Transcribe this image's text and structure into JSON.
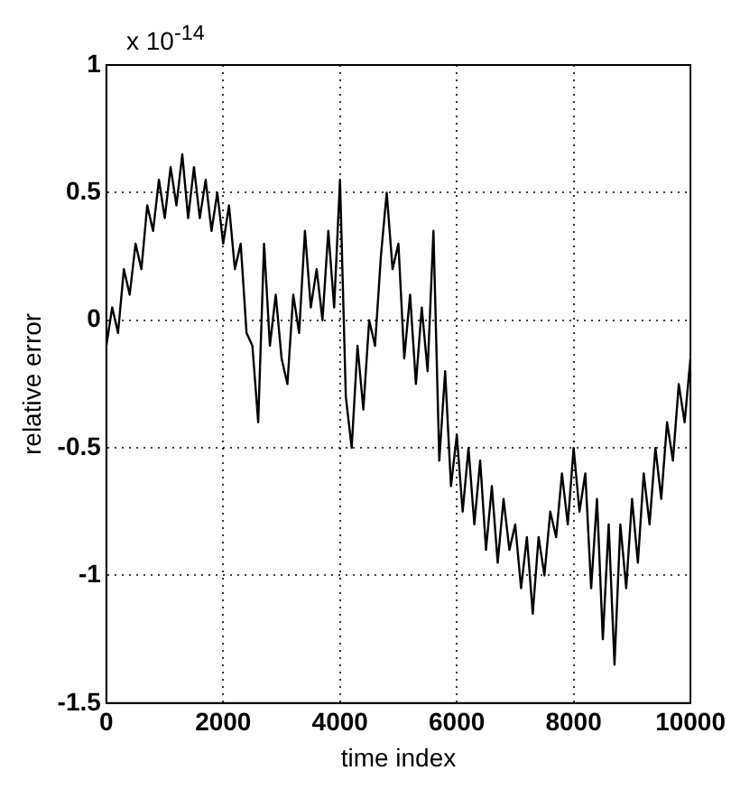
{
  "chart_data": {
    "type": "line",
    "xlabel": "time index",
    "ylabel": "relative error",
    "annotations": [
      "x 10$^{-14}$"
    ],
    "x": [
      0,
      100,
      200,
      300,
      400,
      500,
      600,
      700,
      800,
      900,
      1000,
      1100,
      1200,
      1300,
      1400,
      1500,
      1600,
      1700,
      1800,
      1900,
      2000,
      2100,
      2200,
      2300,
      2400,
      2500,
      2600,
      2700,
      2800,
      2900,
      3000,
      3100,
      3200,
      3300,
      3400,
      3500,
      3600,
      3700,
      3800,
      3900,
      4000,
      4100,
      4200,
      4300,
      4400,
      4500,
      4600,
      4700,
      4800,
      4900,
      5000,
      5100,
      5200,
      5300,
      5400,
      5500,
      5600,
      5700,
      5800,
      5900,
      6000,
      6100,
      6200,
      6300,
      6400,
      6500,
      6600,
      6700,
      6800,
      6900,
      7000,
      7100,
      7200,
      7300,
      7400,
      7500,
      7600,
      7700,
      7800,
      7900,
      8000,
      8100,
      8200,
      8300,
      8400,
      8500,
      8600,
      8700,
      8800,
      8900,
      9000,
      9100,
      9200,
      9300,
      9400,
      9500,
      9600,
      9700,
      9800,
      9900,
      10000
    ],
    "series": [
      {
        "color": "#000000",
        "values": [
          -0.1,
          0.05,
          -0.05,
          0.2,
          0.1,
          0.3,
          0.2,
          0.45,
          0.35,
          0.55,
          0.4,
          0.6,
          0.45,
          0.65,
          0.4,
          0.6,
          0.4,
          0.55,
          0.35,
          0.5,
          0.3,
          0.45,
          0.2,
          0.3,
          -0.05,
          -0.1,
          -0.4,
          0.3,
          -0.1,
          0.1,
          -0.15,
          -0.25,
          0.1,
          -0.05,
          0.35,
          0.05,
          0.2,
          0.0,
          0.35,
          0.05,
          0.55,
          -0.3,
          -0.5,
          -0.1,
          -0.35,
          0.0,
          -0.1,
          0.25,
          0.5,
          0.2,
          0.3,
          -0.15,
          0.1,
          -0.25,
          0.05,
          -0.2,
          0.35,
          -0.55,
          -0.2,
          -0.65,
          -0.45,
          -0.75,
          -0.5,
          -0.8,
          -0.55,
          -0.9,
          -0.65,
          -0.95,
          -0.7,
          -0.9,
          -0.8,
          -1.05,
          -0.85,
          -1.15,
          -0.85,
          -1.0,
          -0.75,
          -0.85,
          -0.6,
          -0.8,
          -0.5,
          -0.75,
          -0.6,
          -1.05,
          -0.7,
          -1.25,
          -0.8,
          -1.35,
          -0.8,
          -1.05,
          -0.7,
          -0.95,
          -0.6,
          -0.8,
          -0.5,
          -0.7,
          -0.4,
          -0.55,
          -0.25,
          -0.4,
          -0.15
        ]
      }
    ],
    "xlim": [
      0,
      10000
    ],
    "xticks": [
      0,
      2000,
      4000,
      6000,
      8000,
      10000
    ],
    "ylim": [
      -1.5,
      1
    ],
    "yticks": [
      -1.5,
      -1,
      -0.5,
      0,
      0.5,
      1
    ],
    "grid": true,
    "legend": false,
    "marker": "none",
    "line_style": "solid"
  }
}
